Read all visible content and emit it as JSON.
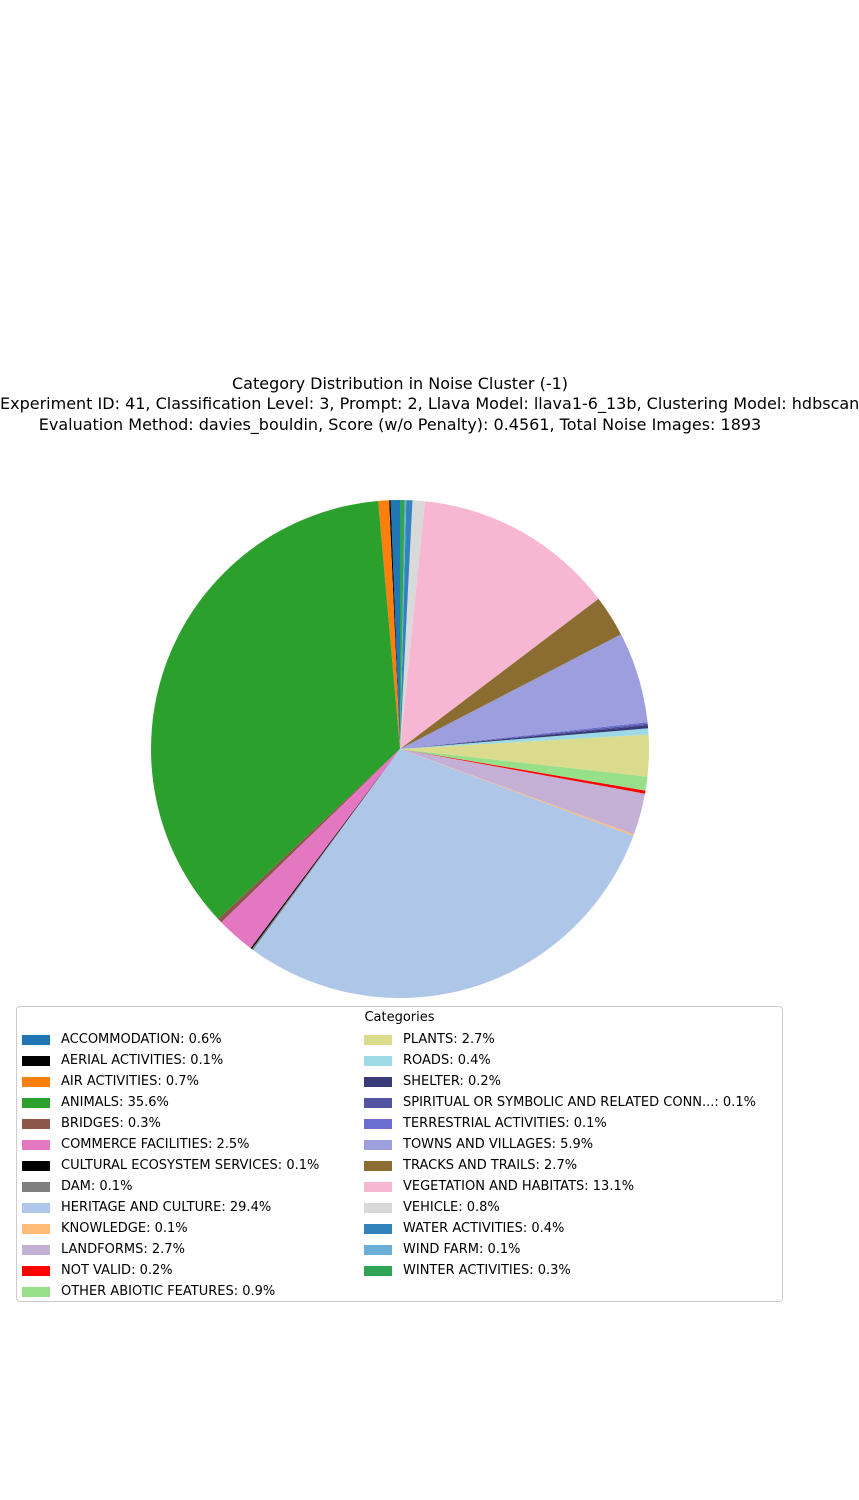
{
  "chart_data": {
    "type": "pie",
    "title": "Category Distribution in Noise Cluster (-1)",
    "subtitle_lines": [
      "Experiment ID: 41, Classification Level: 3, Prompt: 2, Llava Model: llava1-6_13b, Clustering Model: hdbscan",
      "Evaluation Method: davies_bouldin, Score (w/o Penalty): 0.4561, Total Noise Images: 1893"
    ],
    "legend_title": "Categories",
    "legend_placement": "bottom",
    "start_angle_deg": 90,
    "direction": "counterclockwise",
    "slices": [
      {
        "label": "ACCOMMODATION: 0.6%",
        "value": 0.6,
        "color": "#1f77b4"
      },
      {
        "label": "AERIAL ACTIVITIES: 0.1%",
        "value": 0.1,
        "color": "#000000"
      },
      {
        "label": "AIR ACTIVITIES: 0.7%",
        "value": 0.7,
        "color": "#ff7f0e"
      },
      {
        "label": "ANIMALS: 35.6%",
        "value": 35.6,
        "color": "#2ca02c"
      },
      {
        "label": "BRIDGES: 0.3%",
        "value": 0.3,
        "color": "#8c564b"
      },
      {
        "label": "COMMERCE FACILITIES: 2.5%",
        "value": 2.5,
        "color": "#e377c2"
      },
      {
        "label": "CULTURAL ECOSYSTEM SERVICES: 0.1%",
        "value": 0.1,
        "color": "#000000"
      },
      {
        "label": "DAM: 0.1%",
        "value": 0.1,
        "color": "#7f7f7f"
      },
      {
        "label": "HERITAGE AND CULTURE: 29.4%",
        "value": 29.4,
        "color": "#aec7e8"
      },
      {
        "label": "KNOWLEDGE: 0.1%",
        "value": 0.1,
        "color": "#ffbb78"
      },
      {
        "label": "LANDFORMS: 2.7%",
        "value": 2.7,
        "color": "#c5b0d5"
      },
      {
        "label": "NOT VALID: 0.2%",
        "value": 0.2,
        "color": "#ff0000"
      },
      {
        "label": "OTHER ABIOTIC FEATURES: 0.9%",
        "value": 0.9,
        "color": "#98df8a"
      },
      {
        "label": "PLANTS: 2.7%",
        "value": 2.7,
        "color": "#dbdb8d"
      },
      {
        "label": "ROADS: 0.4%",
        "value": 0.4,
        "color": "#9edae5"
      },
      {
        "label": "SHELTER: 0.2%",
        "value": 0.2,
        "color": "#393b79"
      },
      {
        "label": "SPIRITUAL OR SYMBOLIC AND RELATED CONN...: 0.1%",
        "value": 0.1,
        "color": "#5254a3"
      },
      {
        "label": "TERRESTRIAL ACTIVITIES: 0.1%",
        "value": 0.1,
        "color": "#6b6ecf"
      },
      {
        "label": "TOWNS AND VILLAGES: 5.9%",
        "value": 5.9,
        "color": "#9c9ede"
      },
      {
        "label": "TRACKS AND TRAILS: 2.7%",
        "value": 2.7,
        "color": "#8c6d31"
      },
      {
        "label": "VEGETATION AND HABITATS: 13.1%",
        "value": 13.1,
        "color": "#f7b6d2"
      },
      {
        "label": "VEHICLE: 0.8%",
        "value": 0.8,
        "color": "#d9d9d9"
      },
      {
        "label": "WATER ACTIVITIES: 0.4%",
        "value": 0.4,
        "color": "#3182bd"
      },
      {
        "label": "WIND FARM: 0.1%",
        "value": 0.1,
        "color": "#6baed6"
      },
      {
        "label": "WINTER ACTIVITIES: 0.3%",
        "value": 0.3,
        "color": "#31a354"
      }
    ]
  }
}
